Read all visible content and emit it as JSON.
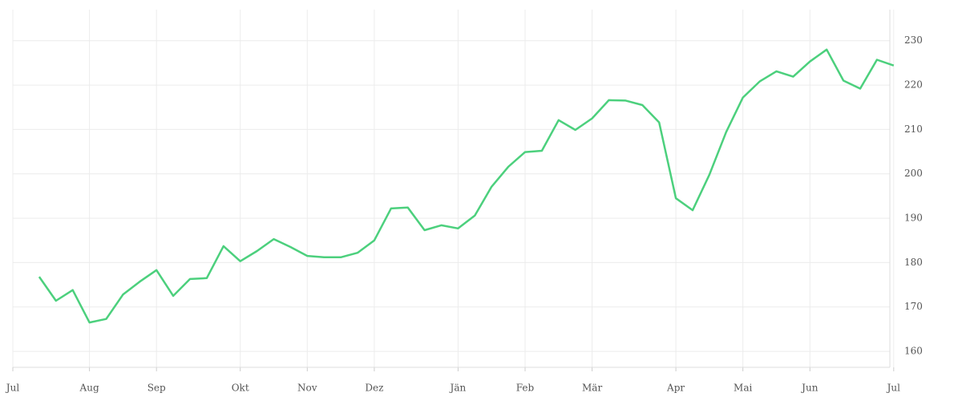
{
  "chart_data": {
    "type": "line",
    "categories": [
      null,
      null,
      null,
      null,
      "Aug",
      null,
      null,
      null,
      "Sep",
      null,
      null,
      null,
      null,
      "Okt",
      null,
      null,
      null,
      "Nov",
      null,
      null,
      null,
      "Dez",
      null,
      null,
      null,
      null,
      "Jän",
      null,
      null,
      null,
      "Feb",
      null,
      null,
      null,
      "Mär",
      null,
      null,
      null,
      null,
      "Apr",
      null,
      null,
      null,
      "Mai",
      null,
      null,
      null,
      "Jun",
      null,
      null,
      null,
      null,
      "Jul"
    ],
    "series": [
      {
        "color": "#4cd07d",
        "values": [
          null,
          176.8,
          171.4,
          173.8,
          166.5,
          167.3,
          172.8,
          175.7,
          178.3,
          172.5,
          176.3,
          176.5,
          183.7,
          180.3,
          182.6,
          185.3,
          183.5,
          181.5,
          181.2,
          181.2,
          182.2,
          185.0,
          192.2,
          192.4,
          187.3,
          188.4,
          187.7,
          190.6,
          197.1,
          201.6,
          204.9,
          205.2,
          212.1,
          209.9,
          212.5,
          216.6,
          216.5,
          215.5,
          211.6,
          194.5,
          191.8,
          199.8,
          209.4,
          217.2,
          220.8,
          223.1,
          221.9,
          225.3,
          228.0,
          221.0,
          219.2,
          225.7,
          224.4
        ]
      }
    ],
    "first_label": "Jul",
    "ylim": [
      156.4,
      237
    ],
    "yticks": [
      160,
      170,
      180,
      190,
      200,
      210,
      220,
      230
    ],
    "grid": true
  }
}
